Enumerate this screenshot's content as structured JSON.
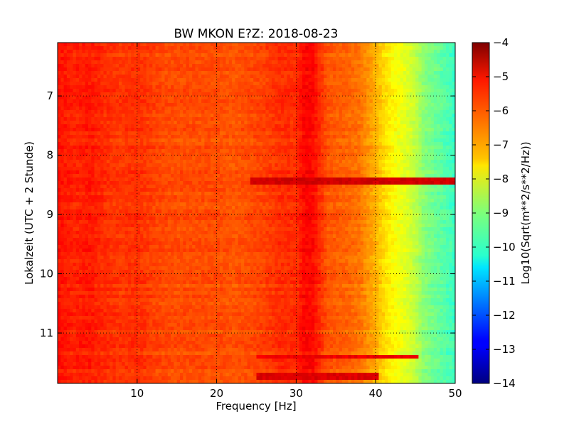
{
  "chart_data": {
    "type": "heatmap",
    "title": "BW MKON E?Z: 2018-08-23",
    "xlabel": "Frequency [Hz]",
    "ylabel": "Lokalzeit (UTC + 2 Stunde)",
    "xlim": [
      0,
      50
    ],
    "ylim": [
      6.1,
      11.85
    ],
    "y_inverted": true,
    "x_ticks": [
      10,
      20,
      30,
      40,
      50
    ],
    "x_tick_labels": [
      "10",
      "20",
      "30",
      "40",
      "50"
    ],
    "y_ticks": [
      7,
      8,
      9,
      10,
      11
    ],
    "y_tick_labels": [
      "7",
      "8",
      "9",
      "10",
      "11"
    ],
    "grid": true,
    "colormap": "jet",
    "colorbar": {
      "label": "Log10(Sqrt(m**2/s**2/Hz))",
      "range": [
        -14,
        -4
      ],
      "ticks": [
        -4,
        -5,
        -6,
        -7,
        -8,
        -9,
        -10,
        -11,
        -12,
        -13,
        -14
      ],
      "tick_labels": [
        "−4",
        "−5",
        "−6",
        "−7",
        "−8",
        "−9",
        "−10",
        "−11",
        "−12",
        "−13",
        "−14"
      ]
    },
    "spectrum_profile": {
      "frequency_hz": [
        0,
        2,
        4,
        6,
        8,
        10,
        12,
        14,
        16,
        18,
        20,
        22,
        24,
        26,
        28,
        30,
        31,
        32,
        33,
        34,
        36,
        38,
        40,
        41,
        42,
        43,
        44,
        45,
        46,
        47,
        48,
        49,
        50
      ],
      "log10_amplitude": [
        -5.4,
        -5.6,
        -5.5,
        -5.7,
        -5.8,
        -5.7,
        -5.9,
        -6.0,
        -6.0,
        -6.0,
        -6.0,
        -6.1,
        -6.0,
        -5.9,
        -5.7,
        -5.7,
        -5.3,
        -5.3,
        -5.7,
        -6.1,
        -6.2,
        -6.4,
        -7.0,
        -7.4,
        -7.7,
        -7.9,
        -8.1,
        -8.4,
        -8.9,
        -9.1,
        -9.3,
        -9.5,
        -9.7
      ]
    },
    "bands": [
      {
        "start_hour": 8.43,
        "end_hour": 8.47,
        "freq_range": [
          24,
          50
        ],
        "log10_amplitude": -4.8
      },
      {
        "start_hour": 11.7,
        "end_hour": 11.74,
        "freq_range": [
          25,
          40
        ],
        "log10_amplitude": -4.9
      },
      {
        "start_hour": 11.4,
        "end_hour": 11.42,
        "freq_range": [
          25,
          45
        ],
        "log10_amplitude": -5.1
      }
    ]
  }
}
